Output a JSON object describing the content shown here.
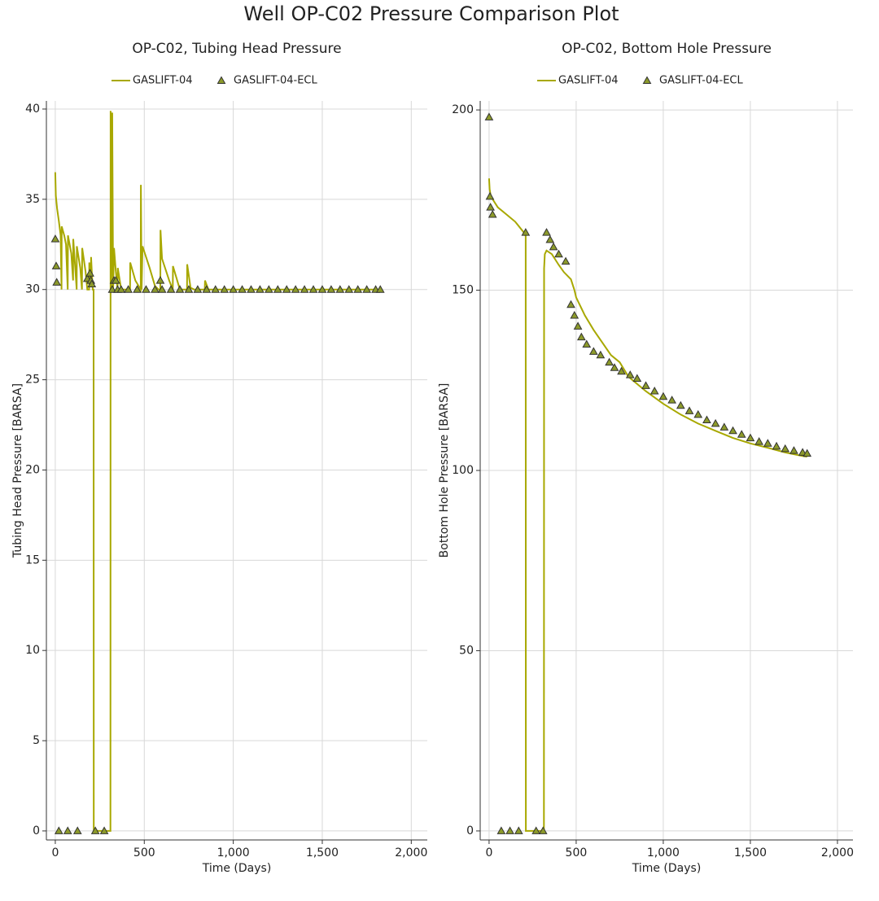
{
  "title": "Well OP-C02 Pressure Comparison Plot",
  "chart_data": [
    {
      "type": "line",
      "title": "OP-C02, Tubing Head Pressure",
      "xlabel": "Time (Days)",
      "ylabel": "Tubing Head Pressure [BARSA]",
      "xlim": [
        -50,
        2090
      ],
      "ylim": [
        -0.5,
        40.45
      ],
      "xticks": [
        0,
        500,
        {
          "value": 1000,
          "label": "1,000"
        },
        {
          "value": 1500,
          "label": "1,500"
        },
        {
          "value": 2000,
          "label": "2,000"
        }
      ],
      "yticks": [
        0,
        5,
        10,
        15,
        20,
        25,
        30,
        35,
        40
      ],
      "grid": true,
      "legend": "top",
      "series": [
        {
          "name": "GASLIFT-04",
          "kind": "line",
          "color": "#a8a800",
          "x": [
            0,
            3,
            10,
            20,
            30,
            35,
            36,
            50,
            60,
            70,
            71,
            90,
            100,
            101,
            110,
            120,
            121,
            140,
            150,
            151,
            170,
            180,
            190,
            191,
            200,
            201,
            210,
            215,
            216,
            310,
            311,
            315,
            320,
            325,
            330,
            340,
            350,
            351,
            370,
            420,
            421,
            450,
            480,
            481,
            485,
            490,
            530,
            560,
            580,
            590,
            591,
            600,
            640,
            660,
            661,
            700,
            740,
            741,
            760,
            780,
            840,
            841,
            860,
            1826
          ],
          "values": [
            36.5,
            35.2,
            34.5,
            33.8,
            33,
            30,
            33.5,
            33,
            32.5,
            30,
            33,
            32,
            30.5,
            32.8,
            31.5,
            30,
            32.4,
            31.2,
            30,
            32.3,
            31,
            30,
            30,
            31.5,
            30.3,
            31.8,
            30,
            30,
            0,
            0,
            39.9,
            30,
            39.8,
            30,
            32.3,
            31,
            30,
            31.2,
            30,
            30,
            31.5,
            30.5,
            30,
            35.8,
            30,
            32.4,
            31.2,
            30.2,
            30,
            30,
            33.3,
            31.7,
            30.5,
            30,
            31.3,
            30,
            30,
            31.4,
            30.1,
            30,
            30,
            30.5,
            30,
            30
          ]
        },
        {
          "name": "GASLIFT-04-ECL",
          "kind": "scatter",
          "color": "#8c9a2a",
          "x": [
            0,
            5,
            8,
            20,
            70,
            125,
            180,
            195,
            200,
            205,
            225,
            275,
            320,
            330,
            340,
            350,
            370,
            410,
            460,
            510,
            560,
            590,
            600,
            650,
            700,
            750,
            800,
            850,
            900,
            950,
            1000,
            1050,
            1100,
            1150,
            1200,
            1250,
            1300,
            1350,
            1400,
            1450,
            1500,
            1550,
            1600,
            1650,
            1700,
            1750,
            1800,
            1826
          ],
          "values": [
            32.8,
            31.3,
            30.4,
            0,
            0,
            0,
            30.6,
            30.9,
            30.5,
            30.3,
            0,
            0,
            30,
            30.5,
            30.5,
            30,
            30,
            30,
            30,
            30,
            30,
            30.5,
            30,
            30,
            30,
            30,
            30,
            30,
            30,
            30,
            30,
            30,
            30,
            30,
            30,
            30,
            30,
            30,
            30,
            30,
            30,
            30,
            30,
            30,
            30,
            30,
            30,
            30
          ]
        }
      ]
    },
    {
      "type": "line",
      "title": "OP-C02, Bottom Hole Pressure",
      "xlabel": "Time (Days)",
      "ylabel": "Bottom Hole Pressure [BARSA]",
      "xlim": [
        -51,
        2089
      ],
      "ylim": [
        -2.5,
        202.5
      ],
      "xticks": [
        0,
        500,
        {
          "value": 1000,
          "label": "1,000"
        },
        {
          "value": 1500,
          "label": "1,500"
        },
        {
          "value": 2000,
          "label": "2,000"
        }
      ],
      "yticks": [
        0,
        50,
        100,
        150,
        200
      ],
      "grid": true,
      "legend": "top",
      "series": [
        {
          "name": "GASLIFT-04",
          "kind": "line",
          "color": "#a8a800",
          "x": [
            0,
            3,
            10,
            50,
            100,
            150,
            200,
            210,
            211,
            315,
            316,
            320,
            330,
            360,
            400,
            430,
            470,
            490,
            500,
            550,
            600,
            700,
            750,
            800,
            900,
            1000,
            1100,
            1200,
            1300,
            1400,
            1500,
            1600,
            1700,
            1800,
            1826
          ],
          "values": [
            181,
            178,
            176,
            173,
            171,
            169,
            166,
            165,
            0,
            0,
            156,
            160,
            161,
            160,
            157,
            155,
            153,
            150,
            148,
            143,
            139,
            132,
            130,
            126,
            122,
            118.5,
            115.5,
            113,
            111,
            109,
            107.5,
            106.3,
            105,
            104,
            103.8
          ]
        },
        {
          "name": "GASLIFT-04-ECL",
          "kind": "scatter",
          "color": "#8c9a2a",
          "x": [
            0,
            5,
            8,
            20,
            70,
            120,
            170,
            210,
            270,
            310,
            330,
            350,
            370,
            400,
            440,
            470,
            490,
            510,
            530,
            560,
            600,
            640,
            690,
            720,
            760,
            810,
            850,
            900,
            950,
            1000,
            1050,
            1100,
            1150,
            1200,
            1250,
            1300,
            1350,
            1400,
            1450,
            1500,
            1550,
            1600,
            1650,
            1700,
            1750,
            1800,
            1826
          ],
          "values": [
            198,
            176,
            173,
            171,
            0,
            0,
            0,
            166,
            0,
            0,
            166,
            164,
            162,
            160,
            158,
            146,
            143,
            140,
            137,
            135,
            133,
            132,
            130,
            128.5,
            127.5,
            126.5,
            125.5,
            123.5,
            122,
            120.5,
            119.5,
            118,
            116.5,
            115.5,
            114,
            113,
            112,
            111,
            110,
            109,
            108,
            107.5,
            106.7,
            106,
            105.5,
            105,
            104.7
          ]
        }
      ]
    }
  ]
}
